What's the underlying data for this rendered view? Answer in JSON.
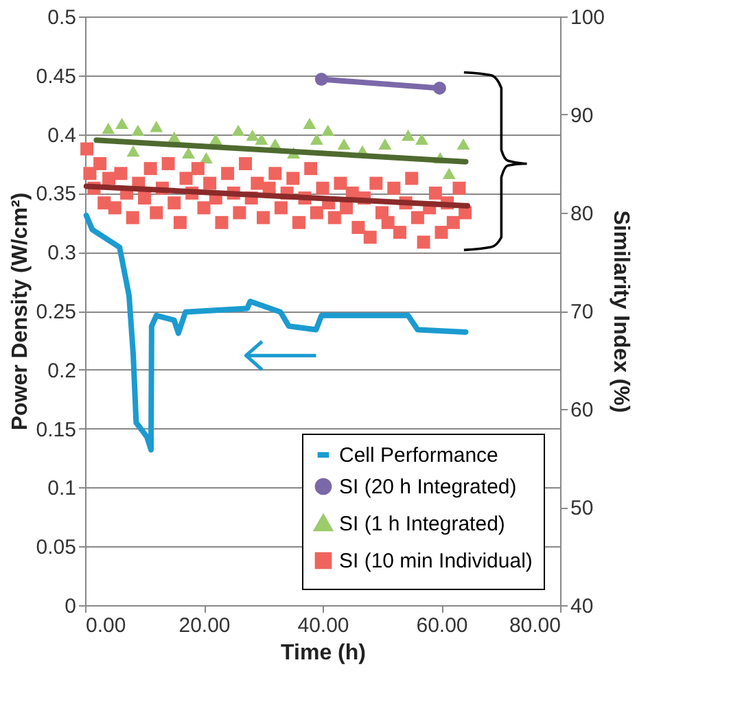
{
  "chart_data": {
    "type": "line",
    "xlabel": "Time (h)",
    "ylabel": "Power Density  (W/cm²)",
    "y2label": "Similarity Index (%)",
    "xlim": [
      0,
      80
    ],
    "xticks": [
      {
        "value": 0,
        "label": "0.00"
      },
      {
        "value": 20,
        "label": "20.00"
      },
      {
        "value": 40,
        "label": "40.00"
      },
      {
        "value": 60,
        "label": "60.00"
      },
      {
        "value": 80,
        "label": "80.00"
      }
    ],
    "ylim": [
      0,
      0.5
    ],
    "yticks": [
      0,
      0.05,
      0.1,
      0.15,
      0.2,
      0.25,
      0.3,
      0.35,
      0.4,
      0.45,
      0.5
    ],
    "y2lim": [
      40,
      100
    ],
    "y2ticks": [
      40,
      50,
      60,
      70,
      80,
      90,
      100
    ],
    "grid": "y",
    "legend": "bottom right",
    "series": [
      {
        "name": "Cell Performance",
        "type": "line",
        "marker": "none",
        "color": "#1b9bd0",
        "x": [
          0.2,
          1.2,
          5.8,
          7.4,
          8.1,
          8.6,
          10.4,
          11.1,
          11.2,
          12,
          15,
          15.7,
          16.9,
          27.3,
          27.8,
          32.9,
          34.3,
          38.9,
          39.8,
          54.4,
          56,
          64.1
        ],
        "values": [
          0.331,
          0.319,
          0.304,
          0.263,
          0.213,
          0.155,
          0.143,
          0.132,
          0.237,
          0.246,
          0.242,
          0.231,
          0.249,
          0.252,
          0.258,
          0.249,
          0.237,
          0.234,
          0.246,
          0.246,
          0.234,
          0.232
        ]
      },
      {
        "name": "SI (20 h Integrated)",
        "type": "line",
        "marker": "circle",
        "axis": "y2",
        "color": "#7b68a8",
        "x": [
          39.8,
          59.7
        ],
        "values": [
          93.6,
          92.7
        ]
      },
      {
        "name": "SI (1 h Integrated)",
        "type": "scatter",
        "marker": "triangle",
        "axis": "y2",
        "color": "#9bcb6b",
        "x": [
          3.9,
          6.2,
          8.1,
          8.9,
          12,
          15,
          17.4,
          20.4,
          22,
          25.8,
          28.2,
          29.7,
          32,
          35.1,
          37.8,
          39,
          40.9,
          43.6,
          46.7,
          50.5,
          54.4,
          56.7,
          59.8,
          61.3,
          63.7
        ],
        "values": [
          88.6,
          89.1,
          86.3,
          88.4,
          88.8,
          87.7,
          86.1,
          85.6,
          87.5,
          88.4,
          87.9,
          87.5,
          87,
          86.1,
          89.1,
          87.5,
          88.4,
          87,
          86.3,
          87,
          87.9,
          87.5,
          85.6,
          84,
          87
        ]
      },
      {
        "name": "SI (10 min Individual)",
        "type": "scatter",
        "marker": "square",
        "axis": "y2",
        "color": "#f0645e",
        "x": [
          0.3,
          0.8,
          1.5,
          2.5,
          3.2,
          4,
          5,
          6,
          7,
          8,
          9,
          10,
          11,
          12,
          13,
          14,
          15,
          16,
          17,
          18,
          19,
          20,
          21,
          22,
          23,
          24,
          25,
          26,
          27,
          28,
          29,
          30,
          31,
          32,
          33,
          34,
          35,
          36,
          37,
          38,
          39,
          40,
          41,
          42,
          43,
          44,
          45,
          46,
          47,
          48,
          49,
          50,
          51,
          52,
          53,
          54,
          55,
          56,
          57,
          58,
          59,
          60,
          61,
          62,
          63,
          64
        ],
        "values": [
          86.5,
          84,
          82.5,
          85,
          81,
          83.5,
          80.5,
          84,
          82,
          79.5,
          83,
          81.5,
          84.5,
          80,
          82.5,
          85,
          81,
          79,
          83.5,
          82,
          84.5,
          80.5,
          83,
          81.5,
          79,
          84,
          82,
          80,
          85,
          81.5,
          83,
          79.5,
          82.5,
          84,
          80.5,
          82,
          83.5,
          79,
          81.5,
          84.5,
          80,
          82.5,
          81,
          79.5,
          83,
          80.5,
          82,
          78.5,
          81.5,
          77.5,
          83,
          80,
          79,
          82.5,
          78,
          81,
          83.5,
          79.5,
          77,
          80.5,
          82,
          78,
          81,
          79,
          82.5,
          80
        ]
      },
      {
        "type": "line",
        "marker": "none",
        "axis": "y2",
        "color": "#4f6a2f",
        "x": [
          1.9,
          64.1
        ],
        "values": [
          87.4,
          85.2
        ]
      },
      {
        "type": "line",
        "marker": "none",
        "axis": "y2",
        "color": "#8b2a2a",
        "x": [
          0.2,
          64.4
        ],
        "values": [
          82.7,
          80.7
        ]
      }
    ]
  }
}
